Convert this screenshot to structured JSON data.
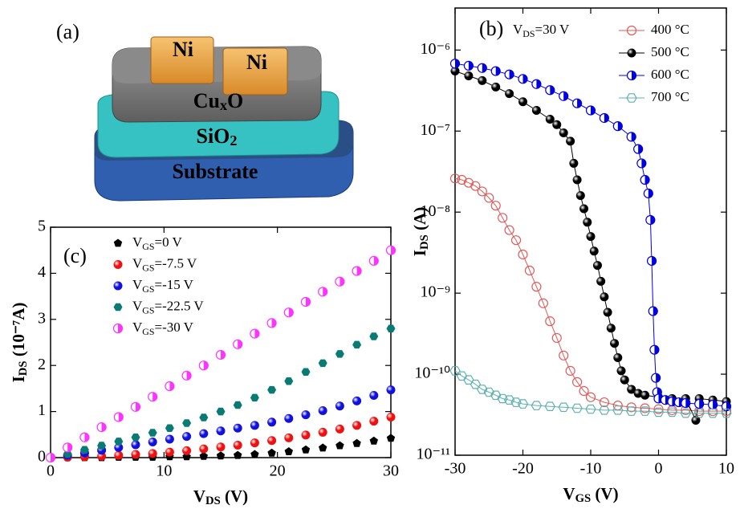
{
  "panel_a": {
    "label": "(a)",
    "layers": [
      "Ni",
      "Ni",
      "CuxO",
      "SiO2",
      "Substrate"
    ]
  },
  "chart_data": [
    {
      "type": "line",
      "panel_label": "(b)",
      "annotation": "VDS=30 V",
      "xlabel": "VGS (V)",
      "ylabel": "IDS (A)",
      "log_scale": true,
      "xlim": [
        -30,
        10
      ],
      "xticks": [
        -30,
        -20,
        -10,
        0,
        10
      ],
      "ylim": [
        1e-11,
        3.3e-06
      ],
      "yticks": [
        {
          "value": 1e-11,
          "label": "10⁻¹¹"
        },
        {
          "value": 1e-10,
          "label": "10⁻¹⁰"
        },
        {
          "value": 1e-09,
          "label": "10⁻⁹"
        },
        {
          "value": 1e-08,
          "label": "10⁻⁸"
        },
        {
          "value": 1e-07,
          "label": "10⁻⁷"
        },
        {
          "value": 1e-06,
          "label": "10⁻⁶"
        }
      ],
      "legend": "upper right",
      "series": [
        {
          "name": "400 °C",
          "color": "#e05a5a",
          "marker": "open-circle",
          "x": [
            -30,
            -29,
            -28,
            -27,
            -26,
            -25,
            -24,
            -23,
            -22,
            -21,
            -20,
            -19,
            -18,
            -17,
            -16,
            -15,
            -14,
            -13,
            -12,
            -11,
            -10,
            -8,
            -6,
            -4,
            -2,
            0,
            2,
            4,
            6,
            8,
            10
          ],
          "values": [
            2.6e-08,
            2.5e-08,
            2.3e-08,
            2.1e-08,
            1.8e-08,
            1.5e-08,
            1.2e-08,
            8.5e-09,
            6e-09,
            4.5e-09,
            3e-09,
            1.9e-09,
            1.2e-09,
            7.5e-10,
            4.5e-10,
            2.8e-10,
            1.7e-10,
            1.1e-10,
            8e-11,
            6.2e-11,
            5.2e-11,
            4.5e-11,
            4.1e-11,
            3.9e-11,
            3.8e-11,
            3.7e-11,
            3.6e-11,
            3.6e-11,
            3.5e-11,
            3.5e-11,
            3.5e-11
          ]
        },
        {
          "name": "500 °C",
          "color": "#000000",
          "marker": "sphere",
          "x": [
            -30,
            -28,
            -26,
            -24,
            -22,
            -20,
            -18,
            -16,
            -15,
            -14,
            -13,
            -12.5,
            -12,
            -11.5,
            -11,
            -10.5,
            -10,
            -9.5,
            -9,
            -8.5,
            -8,
            -7.5,
            -7,
            -6.5,
            -6,
            -5.5,
            -5,
            -4,
            -3,
            -2,
            0,
            2,
            4,
            5.5,
            6,
            8,
            10
          ],
          "values": [
            5.5e-07,
            4.8e-07,
            4.2e-07,
            3.5e-07,
            2.9e-07,
            2.3e-07,
            1.8e-07,
            1.4e-07,
            1.2e-07,
            9.5e-08,
            7.5e-08,
            4e-08,
            2.5e-08,
            1.6e-08,
            1.1e-08,
            7.5e-09,
            5e-09,
            3.3e-09,
            2.2e-09,
            1.4e-09,
            9e-10,
            5.8e-10,
            3.7e-10,
            2.4e-10,
            1.6e-10,
            1.1e-10,
            8.5e-11,
            6.5e-11,
            5.8e-11,
            5.5e-11,
            5.2e-11,
            5e-11,
            5e-11,
            2.7e-11,
            5e-11,
            4.8e-11,
            4.6e-11
          ]
        },
        {
          "name": "600 °C",
          "color": "#0000e0",
          "marker": "half-circle",
          "x": [
            -30,
            -28,
            -26,
            -24,
            -22,
            -20,
            -18,
            -16,
            -14,
            -12,
            -10,
            -8,
            -6,
            -4,
            -3,
            -2.5,
            -2,
            -1.5,
            -1.2,
            -1,
            -0.8,
            -0.6,
            -0.4,
            -0.2,
            0,
            1,
            2,
            3,
            4,
            6,
            8,
            10
          ],
          "values": [
            6.8e-07,
            6.4e-07,
            6e-07,
            5.5e-07,
            5e-07,
            4.4e-07,
            3.8e-07,
            3.2e-07,
            2.7e-07,
            2.2e-07,
            1.8e-07,
            1.45e-07,
            1.15e-07,
            8.5e-08,
            6e-08,
            4e-08,
            2.5e-08,
            1.7e-08,
            8e-09,
            2.5e-09,
            6e-10,
            2e-10,
            9e-11,
            6e-11,
            5e-11,
            4.8e-11,
            4.6e-11,
            4.5e-11,
            4.4e-11,
            4.3e-11,
            4.2e-11,
            4e-11
          ]
        },
        {
          "name": "700 °C",
          "color": "#5fb0b0",
          "marker": "open-hexagon",
          "x": [
            -30,
            -29,
            -28,
            -27,
            -26,
            -25,
            -24,
            -23,
            -22,
            -21,
            -20,
            -18,
            -16,
            -14,
            -12,
            -10,
            -8,
            -6,
            -4,
            -2,
            0,
            2,
            4,
            6,
            8,
            10
          ],
          "values": [
            1.1e-10,
            9.5e-11,
            8.5e-11,
            7.5e-11,
            6.5e-11,
            6e-11,
            5.5e-11,
            5e-11,
            4.8e-11,
            4.5e-11,
            4.3e-11,
            4.1e-11,
            4e-11,
            3.9e-11,
            3.8e-11,
            3.7e-11,
            3.6e-11,
            3.6e-11,
            3.5e-11,
            3.5e-11,
            3.4e-11,
            3.4e-11,
            3.3e-11,
            3.3e-11,
            3.3e-11,
            3.3e-11
          ]
        }
      ]
    },
    {
      "type": "scatter",
      "panel_label": "(c)",
      "xlabel": "VDS (V)",
      "ylabel": "IDS (10⁻⁷A)",
      "xlim": [
        0,
        30
      ],
      "xticks": [
        0,
        10,
        20,
        30
      ],
      "ylim": [
        0,
        5
      ],
      "yticks": [
        0,
        1,
        2,
        3,
        4,
        5
      ],
      "legend": "upper left",
      "x": [
        0,
        1.5,
        3,
        4.5,
        6,
        7.5,
        9,
        10.5,
        12,
        13.5,
        15,
        16.5,
        18,
        19.5,
        21,
        22.5,
        24,
        25.5,
        27,
        28.5,
        30
      ],
      "series": [
        {
          "name": "VGS=0 V",
          "color": "#000000",
          "marker": "pentagon",
          "values": [
            0,
            0,
            0,
            0,
            0.01,
            0.01,
            0.01,
            0.02,
            0.02,
            0.03,
            0.04,
            0.05,
            0.07,
            0.1,
            0.13,
            0.17,
            0.21,
            0.26,
            0.31,
            0.36,
            0.42
          ]
        },
        {
          "name": "VGS=-7.5 V",
          "color": "#ee1111",
          "marker": "sphere",
          "values": [
            0,
            0.01,
            0.02,
            0.03,
            0.05,
            0.07,
            0.09,
            0.12,
            0.15,
            0.19,
            0.23,
            0.27,
            0.32,
            0.37,
            0.43,
            0.49,
            0.55,
            0.62,
            0.7,
            0.79,
            0.88
          ]
        },
        {
          "name": "VGS=-15 V",
          "color": "#1111dd",
          "marker": "sphere",
          "values": [
            0,
            0.05,
            0.1,
            0.16,
            0.22,
            0.28,
            0.34,
            0.4,
            0.46,
            0.52,
            0.58,
            0.64,
            0.7,
            0.77,
            0.85,
            0.93,
            1.02,
            1.12,
            1.23,
            1.35,
            1.47
          ]
        },
        {
          "name": "VGS=-22.5 V",
          "color": "#0a7a74",
          "marker": "hexagon",
          "values": [
            0,
            0.08,
            0.17,
            0.26,
            0.35,
            0.44,
            0.54,
            0.64,
            0.75,
            0.87,
            1.0,
            1.14,
            1.3,
            1.47,
            1.66,
            1.86,
            2.05,
            2.25,
            2.45,
            2.63,
            2.8
          ]
        },
        {
          "name": "VGS=-30 V",
          "color": "#ff33ff",
          "marker": "half-circle",
          "values": [
            0,
            0.22,
            0.44,
            0.66,
            0.88,
            1.1,
            1.32,
            1.55,
            1.78,
            2.0,
            2.23,
            2.46,
            2.69,
            2.92,
            3.15,
            3.38,
            3.6,
            3.82,
            4.05,
            4.27,
            4.5
          ]
        }
      ]
    }
  ]
}
